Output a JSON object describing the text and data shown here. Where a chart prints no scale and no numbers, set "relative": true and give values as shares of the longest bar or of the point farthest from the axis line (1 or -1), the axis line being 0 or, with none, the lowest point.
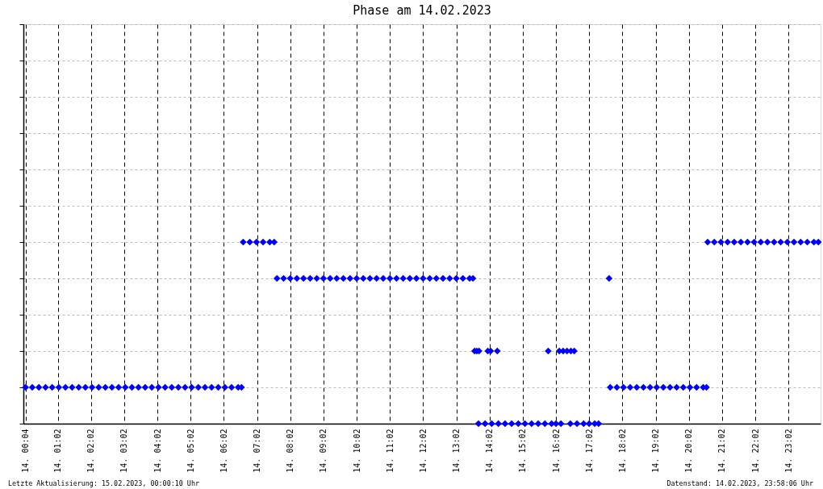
{
  "chart_data": {
    "type": "scatter",
    "title": "Phase am 14.02.2023",
    "relative": true,
    "marker": "diamond",
    "color": "#0000ff",
    "grid": true,
    "xlim": [
      "2023-02-14T00:00",
      "2023-02-15T00:00"
    ],
    "ylim": [
      0,
      2.2
    ],
    "xticks": [
      {
        "value": "2023-02-14T00:04",
        "label": "14. 00:04"
      },
      {
        "value": "2023-02-14T01:02",
        "label": "14. 01:02"
      },
      {
        "value": "2023-02-14T02:02",
        "label": "14. 02:02"
      },
      {
        "value": "2023-02-14T03:02",
        "label": "14. 03:02"
      },
      {
        "value": "2023-02-14T04:02",
        "label": "14. 04:02"
      },
      {
        "value": "2023-02-14T05:02",
        "label": "14. 05:02"
      },
      {
        "value": "2023-02-14T06:02",
        "label": "14. 06:02"
      },
      {
        "value": "2023-02-14T07:02",
        "label": "14. 07:02"
      },
      {
        "value": "2023-02-14T08:02",
        "label": "14. 08:02"
      },
      {
        "value": "2023-02-14T09:02",
        "label": "14. 09:02"
      },
      {
        "value": "2023-02-14T10:02",
        "label": "14. 10:02"
      },
      {
        "value": "2023-02-14T11:02",
        "label": "14. 11:02"
      },
      {
        "value": "2023-02-14T12:02",
        "label": "14. 12:02"
      },
      {
        "value": "2023-02-14T13:02",
        "label": "14. 13:02"
      },
      {
        "value": "2023-02-14T14:02",
        "label": "14. 14:02"
      },
      {
        "value": "2023-02-14T15:02",
        "label": "14. 15:02"
      },
      {
        "value": "2023-02-14T16:02",
        "label": "14. 16:02"
      },
      {
        "value": "2023-02-14T17:02",
        "label": "14. 17:02"
      },
      {
        "value": "2023-02-14T18:02",
        "label": "14. 18:02"
      },
      {
        "value": "2023-02-14T19:02",
        "label": "14. 19:02"
      },
      {
        "value": "2023-02-14T20:02",
        "label": "14. 20:02"
      },
      {
        "value": "2023-02-14T21:02",
        "label": "14. 21:02"
      },
      {
        "value": "2023-02-14T22:02",
        "label": "14. 22:02"
      },
      {
        "value": "2023-02-14T23:02",
        "label": "14. 23:02"
      }
    ],
    "x": [
      "2023-02-14T00:04",
      "2023-02-14T00:16",
      "2023-02-14T00:28",
      "2023-02-14T00:40",
      "2023-02-14T00:52",
      "2023-02-14T01:04",
      "2023-02-14T01:16",
      "2023-02-14T01:28",
      "2023-02-14T01:40",
      "2023-02-14T01:52",
      "2023-02-14T02:04",
      "2023-02-14T02:16",
      "2023-02-14T02:28",
      "2023-02-14T02:40",
      "2023-02-14T02:52",
      "2023-02-14T03:04",
      "2023-02-14T03:16",
      "2023-02-14T03:28",
      "2023-02-14T03:40",
      "2023-02-14T03:52",
      "2023-02-14T04:04",
      "2023-02-14T04:16",
      "2023-02-14T04:28",
      "2023-02-14T04:40",
      "2023-02-14T04:52",
      "2023-02-14T05:04",
      "2023-02-14T05:16",
      "2023-02-14T05:28",
      "2023-02-14T05:40",
      "2023-02-14T05:52",
      "2023-02-14T06:04",
      "2023-02-14T06:16",
      "2023-02-14T06:28",
      "2023-02-14T06:34",
      "2023-02-14T06:37",
      "2023-02-14T06:49",
      "2023-02-14T07:01",
      "2023-02-14T07:13",
      "2023-02-14T07:25",
      "2023-02-14T07:33",
      "2023-02-14T07:38",
      "2023-02-14T07:50",
      "2023-02-14T08:02",
      "2023-02-14T08:14",
      "2023-02-14T08:26",
      "2023-02-14T08:38",
      "2023-02-14T08:50",
      "2023-02-14T09:02",
      "2023-02-14T09:14",
      "2023-02-14T09:26",
      "2023-02-14T09:38",
      "2023-02-14T09:50",
      "2023-02-14T10:02",
      "2023-02-14T10:14",
      "2023-02-14T10:26",
      "2023-02-14T10:38",
      "2023-02-14T10:50",
      "2023-02-14T11:02",
      "2023-02-14T11:14",
      "2023-02-14T11:26",
      "2023-02-14T11:38",
      "2023-02-14T11:50",
      "2023-02-14T12:02",
      "2023-02-14T12:14",
      "2023-02-14T12:26",
      "2023-02-14T12:38",
      "2023-02-14T12:50",
      "2023-02-14T13:02",
      "2023-02-14T13:14",
      "2023-02-14T13:26",
      "2023-02-14T13:32",
      "2023-02-14T13:35",
      "2023-02-14T13:39",
      "2023-02-14T13:42",
      "2023-02-14T13:43",
      "2023-02-14T13:54",
      "2023-02-14T13:59",
      "2023-02-14T14:04",
      "2023-02-14T14:06",
      "2023-02-14T14:16",
      "2023-02-14T14:18",
      "2023-02-14T14:30",
      "2023-02-14T14:42",
      "2023-02-14T14:54",
      "2023-02-14T15:06",
      "2023-02-14T15:18",
      "2023-02-14T15:30",
      "2023-02-14T15:42",
      "2023-02-14T15:48",
      "2023-02-14T15:54",
      "2023-02-14T16:02",
      "2023-02-14T16:08",
      "2023-02-14T16:11",
      "2023-02-14T16:15",
      "2023-02-14T16:22",
      "2023-02-14T16:28",
      "2023-02-14T16:29",
      "2023-02-14T16:35",
      "2023-02-14T16:40",
      "2023-02-14T16:52",
      "2023-02-14T17:02",
      "2023-02-14T17:12",
      "2023-02-14T17:19",
      "2023-02-14T17:38",
      "2023-02-14T17:40",
      "2023-02-14T17:52",
      "2023-02-14T18:04",
      "2023-02-14T18:16",
      "2023-02-14T18:28",
      "2023-02-14T18:40",
      "2023-02-14T18:52",
      "2023-02-14T19:04",
      "2023-02-14T19:16",
      "2023-02-14T19:28",
      "2023-02-14T19:40",
      "2023-02-14T19:52",
      "2023-02-14T20:04",
      "2023-02-14T20:16",
      "2023-02-14T20:28",
      "2023-02-14T20:34",
      "2023-02-14T20:36",
      "2023-02-14T20:48",
      "2023-02-14T21:00",
      "2023-02-14T21:12",
      "2023-02-14T21:24",
      "2023-02-14T21:36",
      "2023-02-14T21:48",
      "2023-02-14T22:00",
      "2023-02-14T22:12",
      "2023-02-14T22:24",
      "2023-02-14T22:36",
      "2023-02-14T22:48",
      "2023-02-14T23:00",
      "2023-02-14T23:12",
      "2023-02-14T23:24",
      "2023-02-14T23:36",
      "2023-02-14T23:48",
      "2023-02-14T23:56"
    ],
    "values": [
      0.2,
      0.2,
      0.2,
      0.2,
      0.2,
      0.2,
      0.2,
      0.2,
      0.2,
      0.2,
      0.2,
      0.2,
      0.2,
      0.2,
      0.2,
      0.2,
      0.2,
      0.2,
      0.2,
      0.2,
      0.2,
      0.2,
      0.2,
      0.2,
      0.2,
      0.2,
      0.2,
      0.2,
      0.2,
      0.2,
      0.2,
      0.2,
      0.2,
      0.2,
      1,
      1,
      1,
      1,
      1,
      1,
      0.8,
      0.8,
      0.8,
      0.8,
      0.8,
      0.8,
      0.8,
      0.8,
      0.8,
      0.8,
      0.8,
      0.8,
      0.8,
      0.8,
      0.8,
      0.8,
      0.8,
      0.8,
      0.8,
      0.8,
      0.8,
      0.8,
      0.8,
      0.8,
      0.8,
      0.8,
      0.8,
      0.8,
      0.8,
      0.8,
      0.8,
      0.4,
      0.4,
      0,
      0.4,
      0,
      0.4,
      0.4,
      0,
      0.4,
      0,
      0,
      0,
      0,
      0,
      0,
      0,
      0,
      0.4,
      0,
      0,
      0.4,
      0,
      0.4,
      0.4,
      0,
      0.4,
      0.4,
      0,
      0,
      0,
      0,
      0,
      0.8,
      0.2,
      0.2,
      0.2,
      0.2,
      0.2,
      0.2,
      0.2,
      0.2,
      0.2,
      0.2,
      0.2,
      0.2,
      0.2,
      0.2,
      0.2,
      0.2,
      1,
      1,
      1,
      1,
      1,
      1,
      1,
      1,
      1,
      1,
      1,
      1,
      1,
      1,
      1,
      1,
      1,
      1
    ],
    "annotations": [
      "Letzte Aktualisierung: 15.02.2023, 00:00:10 Uhr",
      "Datenstand: 14.02.2023, 23:58:06 Uhr"
    ]
  }
}
